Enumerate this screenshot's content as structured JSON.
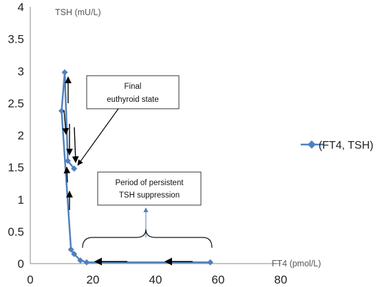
{
  "chart_data": {
    "type": "scatter",
    "xlabel": "FT4 (pmol/L)",
    "ylabel": "TSH (mU/L)",
    "xlim": [
      0,
      80
    ],
    "ylim": [
      0,
      4
    ],
    "x_ticks": [
      "0",
      "20",
      "40",
      "60",
      "80"
    ],
    "y_ticks": [
      "0",
      "0.5",
      "1",
      "1.5",
      "2",
      "2.5",
      "3",
      "3.5",
      "4"
    ],
    "grid": false,
    "legend": "right",
    "series": [
      {
        "name": "(FT4, TSH)",
        "color": "#4f81bd",
        "marker": "diamond",
        "points": [
          {
            "x": 57.5,
            "y": 0.02
          },
          {
            "x": 18,
            "y": 0.02
          },
          {
            "x": 16,
            "y": 0.05
          },
          {
            "x": 14,
            "y": 0.15
          },
          {
            "x": 13,
            "y": 0.22
          },
          {
            "x": 10,
            "y": 2.38
          },
          {
            "x": 11,
            "y": 2.98
          },
          {
            "x": 12,
            "y": 1.6
          },
          {
            "x": 14,
            "y": 1.48
          }
        ]
      }
    ],
    "annotations": [
      {
        "id": "final",
        "lines": [
          "Final",
          "euthyroid state"
        ]
      },
      {
        "id": "period",
        "lines": [
          "Period of persistent",
          "TSH suppression"
        ]
      }
    ]
  }
}
